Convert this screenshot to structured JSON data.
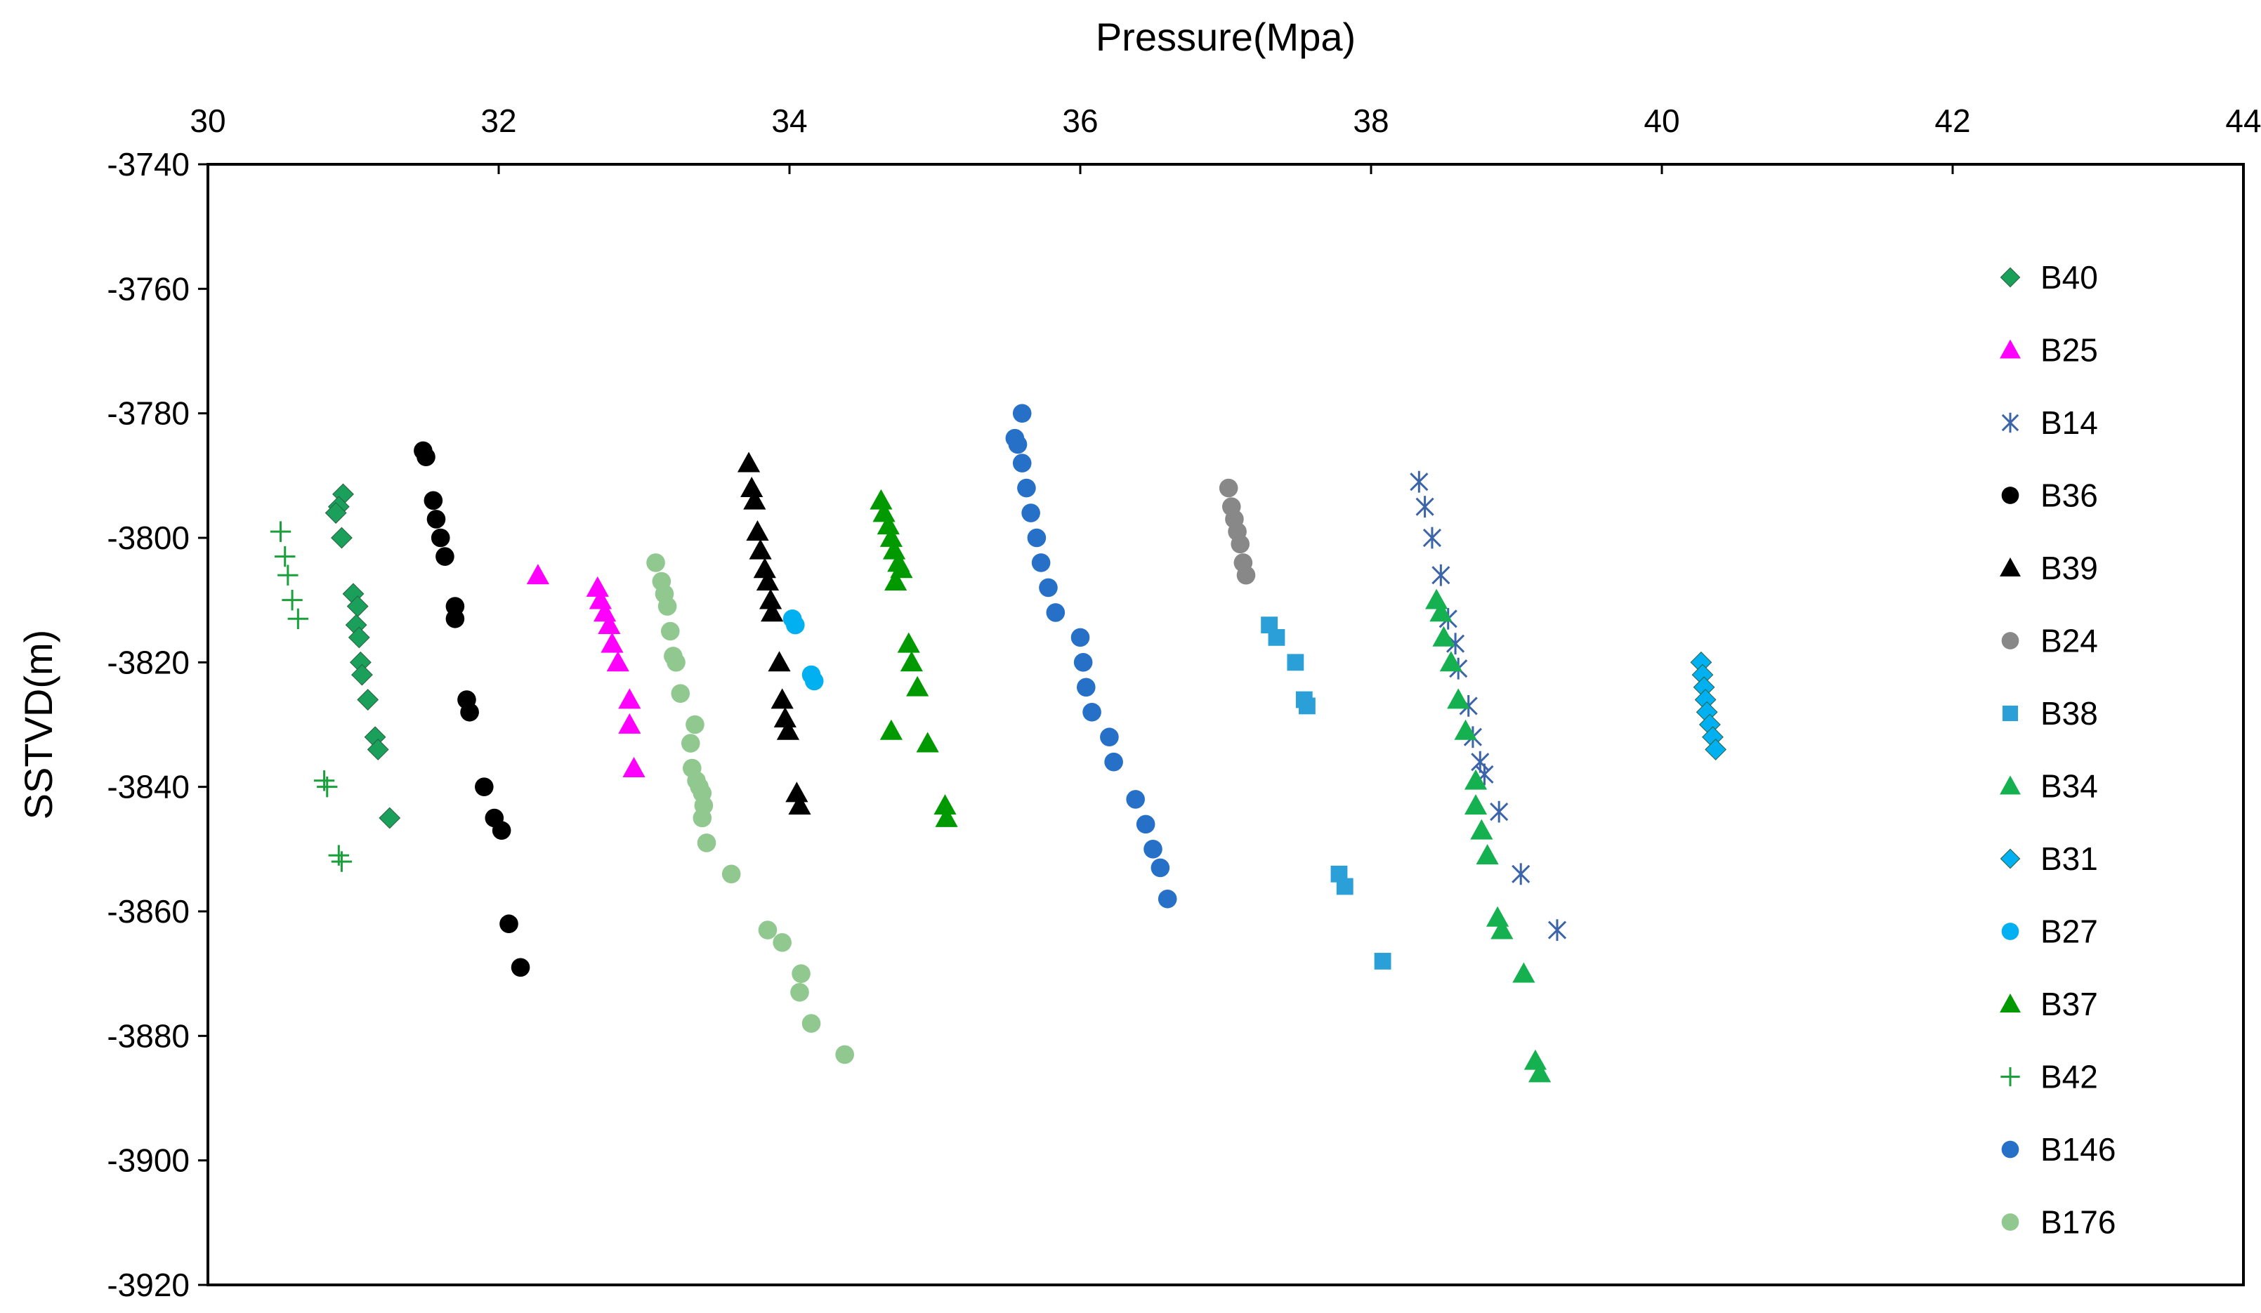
{
  "chart_data": {
    "type": "scatter",
    "title": "",
    "xlabel": "Pressure(Mpa)",
    "ylabel": "SSTVD(m)",
    "xlim": [
      30,
      44
    ],
    "ylim": [
      -3920,
      -3740
    ],
    "x_axis_position": "top",
    "x_ticks": [
      30,
      32,
      34,
      36,
      38,
      40,
      42,
      44
    ],
    "y_ticks": [
      -3740,
      -3760,
      -3780,
      -3800,
      -3820,
      -3840,
      -3860,
      -3880,
      -3900,
      -3920
    ],
    "grid": false,
    "legend_position": "right",
    "series": [
      {
        "name": "B40",
        "marker": "diamond",
        "color": "#1aa05a",
        "points": [
          [
            30.93,
            -3793
          ],
          [
            30.9,
            -3795
          ],
          [
            30.88,
            -3796
          ],
          [
            30.92,
            -3800
          ],
          [
            31.0,
            -3809
          ],
          [
            31.03,
            -3811
          ],
          [
            31.02,
            -3814
          ],
          [
            31.04,
            -3816
          ],
          [
            31.05,
            -3820
          ],
          [
            31.06,
            -3822
          ],
          [
            31.1,
            -3826
          ],
          [
            31.15,
            -3832
          ],
          [
            31.17,
            -3834
          ],
          [
            31.25,
            -3845
          ]
        ]
      },
      {
        "name": "B25",
        "marker": "triangle",
        "color": "#ff00ff",
        "points": [
          [
            32.27,
            -3806
          ],
          [
            32.68,
            -3808
          ],
          [
            32.7,
            -3810
          ],
          [
            32.73,
            -3812
          ],
          [
            32.76,
            -3814
          ],
          [
            32.78,
            -3817
          ],
          [
            32.82,
            -3820
          ],
          [
            32.9,
            -3826
          ],
          [
            32.9,
            -3830
          ],
          [
            32.93,
            -3837
          ]
        ]
      },
      {
        "name": "B14",
        "marker": "star",
        "color": "#3b65a8",
        "points": [
          [
            38.33,
            -3791
          ],
          [
            38.37,
            -3795
          ],
          [
            38.42,
            -3800
          ],
          [
            38.48,
            -3806
          ],
          [
            38.53,
            -3813
          ],
          [
            38.58,
            -3817
          ],
          [
            38.6,
            -3821
          ],
          [
            38.67,
            -3827
          ],
          [
            38.7,
            -3832
          ],
          [
            38.75,
            -3836
          ],
          [
            38.78,
            -3838
          ],
          [
            38.88,
            -3844
          ],
          [
            39.03,
            -3854
          ],
          [
            39.28,
            -3863
          ]
        ]
      },
      {
        "name": "B36",
        "marker": "circle",
        "color": "#000000",
        "points": [
          [
            31.48,
            -3786
          ],
          [
            31.5,
            -3787
          ],
          [
            31.55,
            -3794
          ],
          [
            31.57,
            -3797
          ],
          [
            31.6,
            -3800
          ],
          [
            31.63,
            -3803
          ],
          [
            31.7,
            -3811
          ],
          [
            31.7,
            -3813
          ],
          [
            31.78,
            -3826
          ],
          [
            31.8,
            -3828
          ],
          [
            31.9,
            -3840
          ],
          [
            31.97,
            -3845
          ],
          [
            32.02,
            -3847
          ],
          [
            32.07,
            -3862
          ],
          [
            32.15,
            -3869
          ]
        ]
      },
      {
        "name": "B39",
        "marker": "triangle",
        "color": "#000000",
        "points": [
          [
            33.72,
            -3788
          ],
          [
            33.74,
            -3792
          ],
          [
            33.76,
            -3794
          ],
          [
            33.78,
            -3799
          ],
          [
            33.8,
            -3802
          ],
          [
            33.83,
            -3805
          ],
          [
            33.85,
            -3807
          ],
          [
            33.87,
            -3810
          ],
          [
            33.88,
            -3812
          ],
          [
            33.93,
            -3820
          ],
          [
            33.95,
            -3826
          ],
          [
            33.97,
            -3829
          ],
          [
            33.99,
            -3831
          ],
          [
            34.05,
            -3841
          ],
          [
            34.07,
            -3843
          ]
        ]
      },
      {
        "name": "B24",
        "marker": "circle",
        "color": "#888888",
        "points": [
          [
            37.02,
            -3792
          ],
          [
            37.04,
            -3795
          ],
          [
            37.06,
            -3797
          ],
          [
            37.08,
            -3799
          ],
          [
            37.1,
            -3801
          ],
          [
            37.12,
            -3804
          ],
          [
            37.14,
            -3806
          ]
        ]
      },
      {
        "name": "B38",
        "marker": "square",
        "color": "#2a9fd8",
        "points": [
          [
            37.3,
            -3814
          ],
          [
            37.35,
            -3816
          ],
          [
            37.48,
            -3820
          ],
          [
            37.54,
            -3826
          ],
          [
            37.56,
            -3827
          ],
          [
            37.78,
            -3854
          ],
          [
            37.82,
            -3856
          ],
          [
            38.08,
            -3868
          ]
        ]
      },
      {
        "name": "B34",
        "marker": "triangle",
        "color": "#15b050",
        "points": [
          [
            38.45,
            -3810
          ],
          [
            38.48,
            -3812
          ],
          [
            38.5,
            -3816
          ],
          [
            38.55,
            -3820
          ],
          [
            38.6,
            -3826
          ],
          [
            38.65,
            -3831
          ],
          [
            38.72,
            -3839
          ],
          [
            38.72,
            -3843
          ],
          [
            38.76,
            -3847
          ],
          [
            38.8,
            -3851
          ],
          [
            38.87,
            -3861
          ],
          [
            38.9,
            -3863
          ],
          [
            39.05,
            -3870
          ],
          [
            39.13,
            -3884
          ],
          [
            39.16,
            -3886
          ]
        ]
      },
      {
        "name": "B31",
        "marker": "diamond",
        "color": "#00b0f0",
        "points": [
          [
            40.27,
            -3820
          ],
          [
            40.28,
            -3822
          ],
          [
            40.29,
            -3824
          ],
          [
            40.3,
            -3826
          ],
          [
            40.31,
            -3828
          ],
          [
            40.33,
            -3830
          ],
          [
            40.35,
            -3832
          ],
          [
            40.37,
            -3834
          ]
        ]
      },
      {
        "name": "B27",
        "marker": "circle",
        "color": "#00b0f0",
        "points": [
          [
            34.02,
            -3813
          ],
          [
            34.04,
            -3814
          ],
          [
            34.15,
            -3822
          ],
          [
            34.17,
            -3823
          ]
        ]
      },
      {
        "name": "B37",
        "marker": "triangle",
        "color": "#009a00",
        "points": [
          [
            34.63,
            -3794
          ],
          [
            34.65,
            -3796
          ],
          [
            34.68,
            -3798
          ],
          [
            34.7,
            -3800
          ],
          [
            34.72,
            -3802
          ],
          [
            34.75,
            -3804
          ],
          [
            34.77,
            -3805
          ],
          [
            34.73,
            -3807
          ],
          [
            34.82,
            -3817
          ],
          [
            34.84,
            -3820
          ],
          [
            34.88,
            -3824
          ],
          [
            34.7,
            -3831
          ],
          [
            34.95,
            -3833
          ],
          [
            35.07,
            -3843
          ],
          [
            35.08,
            -3845
          ]
        ]
      },
      {
        "name": "B42",
        "marker": "plus",
        "color": "#1aa03a",
        "points": [
          [
            30.5,
            -3799
          ],
          [
            30.53,
            -3803
          ],
          [
            30.55,
            -3806
          ],
          [
            30.58,
            -3810
          ],
          [
            30.62,
            -3813
          ],
          [
            30.8,
            -3839
          ],
          [
            30.82,
            -3840
          ],
          [
            30.9,
            -3851
          ],
          [
            30.92,
            -3852
          ]
        ]
      },
      {
        "name": "B146",
        "marker": "circle",
        "color": "#2670c8",
        "points": [
          [
            35.6,
            -3780
          ],
          [
            35.55,
            -3784
          ],
          [
            35.57,
            -3785
          ],
          [
            35.6,
            -3788
          ],
          [
            35.63,
            -3792
          ],
          [
            35.66,
            -3796
          ],
          [
            35.7,
            -3800
          ],
          [
            35.73,
            -3804
          ],
          [
            35.78,
            -3808
          ],
          [
            35.83,
            -3812
          ],
          [
            36.0,
            -3816
          ],
          [
            36.02,
            -3820
          ],
          [
            36.04,
            -3824
          ],
          [
            36.08,
            -3828
          ],
          [
            36.2,
            -3832
          ],
          [
            36.23,
            -3836
          ],
          [
            36.38,
            -3842
          ],
          [
            36.45,
            -3846
          ],
          [
            36.5,
            -3850
          ],
          [
            36.55,
            -3853
          ],
          [
            36.6,
            -3858
          ]
        ]
      },
      {
        "name": "B176",
        "marker": "circle",
        "color": "#90c890",
        "points": [
          [
            33.08,
            -3804
          ],
          [
            33.12,
            -3807
          ],
          [
            33.14,
            -3809
          ],
          [
            33.16,
            -3811
          ],
          [
            33.18,
            -3815
          ],
          [
            33.2,
            -3819
          ],
          [
            33.22,
            -3820
          ],
          [
            33.25,
            -3825
          ],
          [
            33.35,
            -3830
          ],
          [
            33.32,
            -3833
          ],
          [
            33.33,
            -3837
          ],
          [
            33.36,
            -3839
          ],
          [
            33.38,
            -3840
          ],
          [
            33.4,
            -3841
          ],
          [
            33.41,
            -3843
          ],
          [
            33.4,
            -3845
          ],
          [
            33.43,
            -3849
          ],
          [
            33.6,
            -3854
          ],
          [
            33.85,
            -3863
          ],
          [
            33.95,
            -3865
          ],
          [
            34.08,
            -3870
          ],
          [
            34.07,
            -3873
          ],
          [
            34.15,
            -3878
          ],
          [
            34.38,
            -3883
          ]
        ]
      }
    ]
  }
}
